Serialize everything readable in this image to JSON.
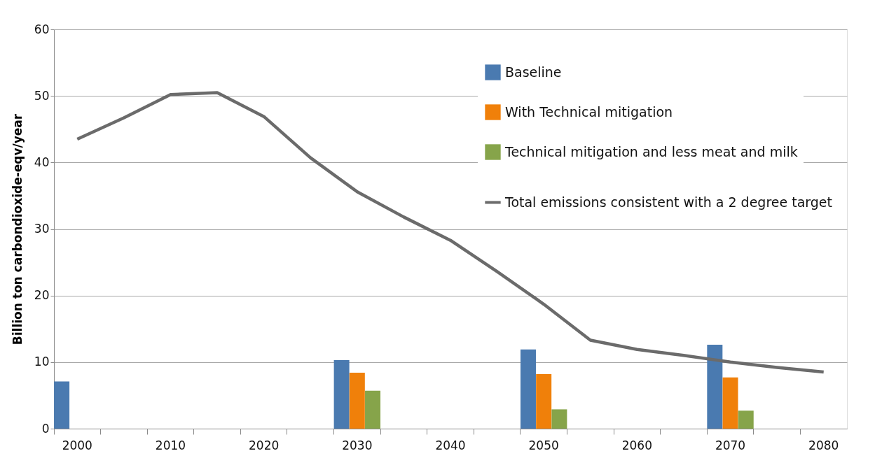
{
  "chart_data": {
    "type": "bar",
    "ylabel": "Billion  ton carbondioxide-eqv/year",
    "categories": [
      "2000",
      null,
      "2010",
      null,
      "2020",
      null,
      "2030",
      null,
      "2040",
      null,
      "2050",
      null,
      "2060",
      null,
      "2070",
      null,
      "2080"
    ],
    "series": [
      {
        "name": "Baseline",
        "color": "#4a7ab0",
        "values": [
          7.1,
          null,
          null,
          null,
          null,
          null,
          10.3,
          null,
          null,
          null,
          11.9,
          null,
          null,
          null,
          12.6,
          null,
          null
        ]
      },
      {
        "name": "With Technical mitigation",
        "color": "#f0800a",
        "values": [
          null,
          null,
          null,
          null,
          null,
          null,
          8.4,
          null,
          null,
          null,
          8.2,
          null,
          null,
          null,
          7.7,
          null,
          null
        ]
      },
      {
        "name": "Technical mitigation and less meat and milk",
        "color": "#86a44a",
        "values": [
          null,
          null,
          null,
          null,
          null,
          null,
          5.7,
          null,
          null,
          null,
          2.9,
          null,
          null,
          null,
          2.7,
          null,
          null
        ]
      },
      {
        "name": "Total emissions consistent with a 2 degree target",
        "type": "line",
        "color": "#6b6b6b",
        "values": [
          43.5,
          46.7,
          50.2,
          50.5,
          46.9,
          40.7,
          35.6,
          31.8,
          28.3,
          23.6,
          18.7,
          13.3,
          11.9,
          11.0,
          10.0,
          9.2,
          8.5
        ]
      }
    ],
    "ylim": [
      0,
      60
    ],
    "yticks": [
      0,
      10,
      20,
      30,
      40,
      50,
      60
    ],
    "grid": "y",
    "legend": "top right"
  }
}
